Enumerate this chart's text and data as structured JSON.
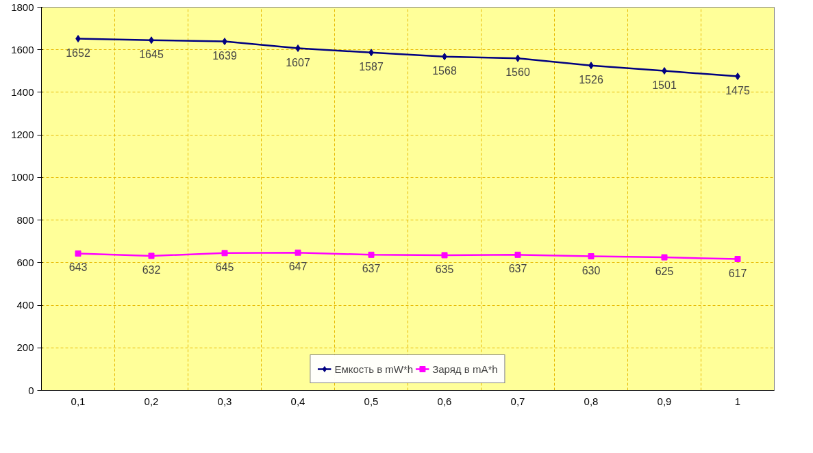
{
  "chart_data": {
    "type": "line",
    "categories": [
      "0,1",
      "0,2",
      "0,3",
      "0,4",
      "0,5",
      "0,6",
      "0,7",
      "0,8",
      "0,9",
      "1"
    ],
    "series": [
      {
        "name": "Емкость в mW*h",
        "color": "#000080",
        "marker": "diamond",
        "values": [
          1652,
          1645,
          1639,
          1607,
          1587,
          1568,
          1560,
          1526,
          1501,
          1475
        ]
      },
      {
        "name": "Заряд в mA*h",
        "color": "#ff00ff",
        "marker": "square",
        "values": [
          643,
          632,
          645,
          647,
          637,
          635,
          637,
          630,
          625,
          617
        ]
      }
    ],
    "ylim": [
      0,
      1800
    ],
    "yticks": [
      0,
      200,
      400,
      600,
      800,
      1000,
      1200,
      1400,
      1600,
      1800
    ],
    "grid": true,
    "legend": "bottom",
    "data_labels": true
  }
}
